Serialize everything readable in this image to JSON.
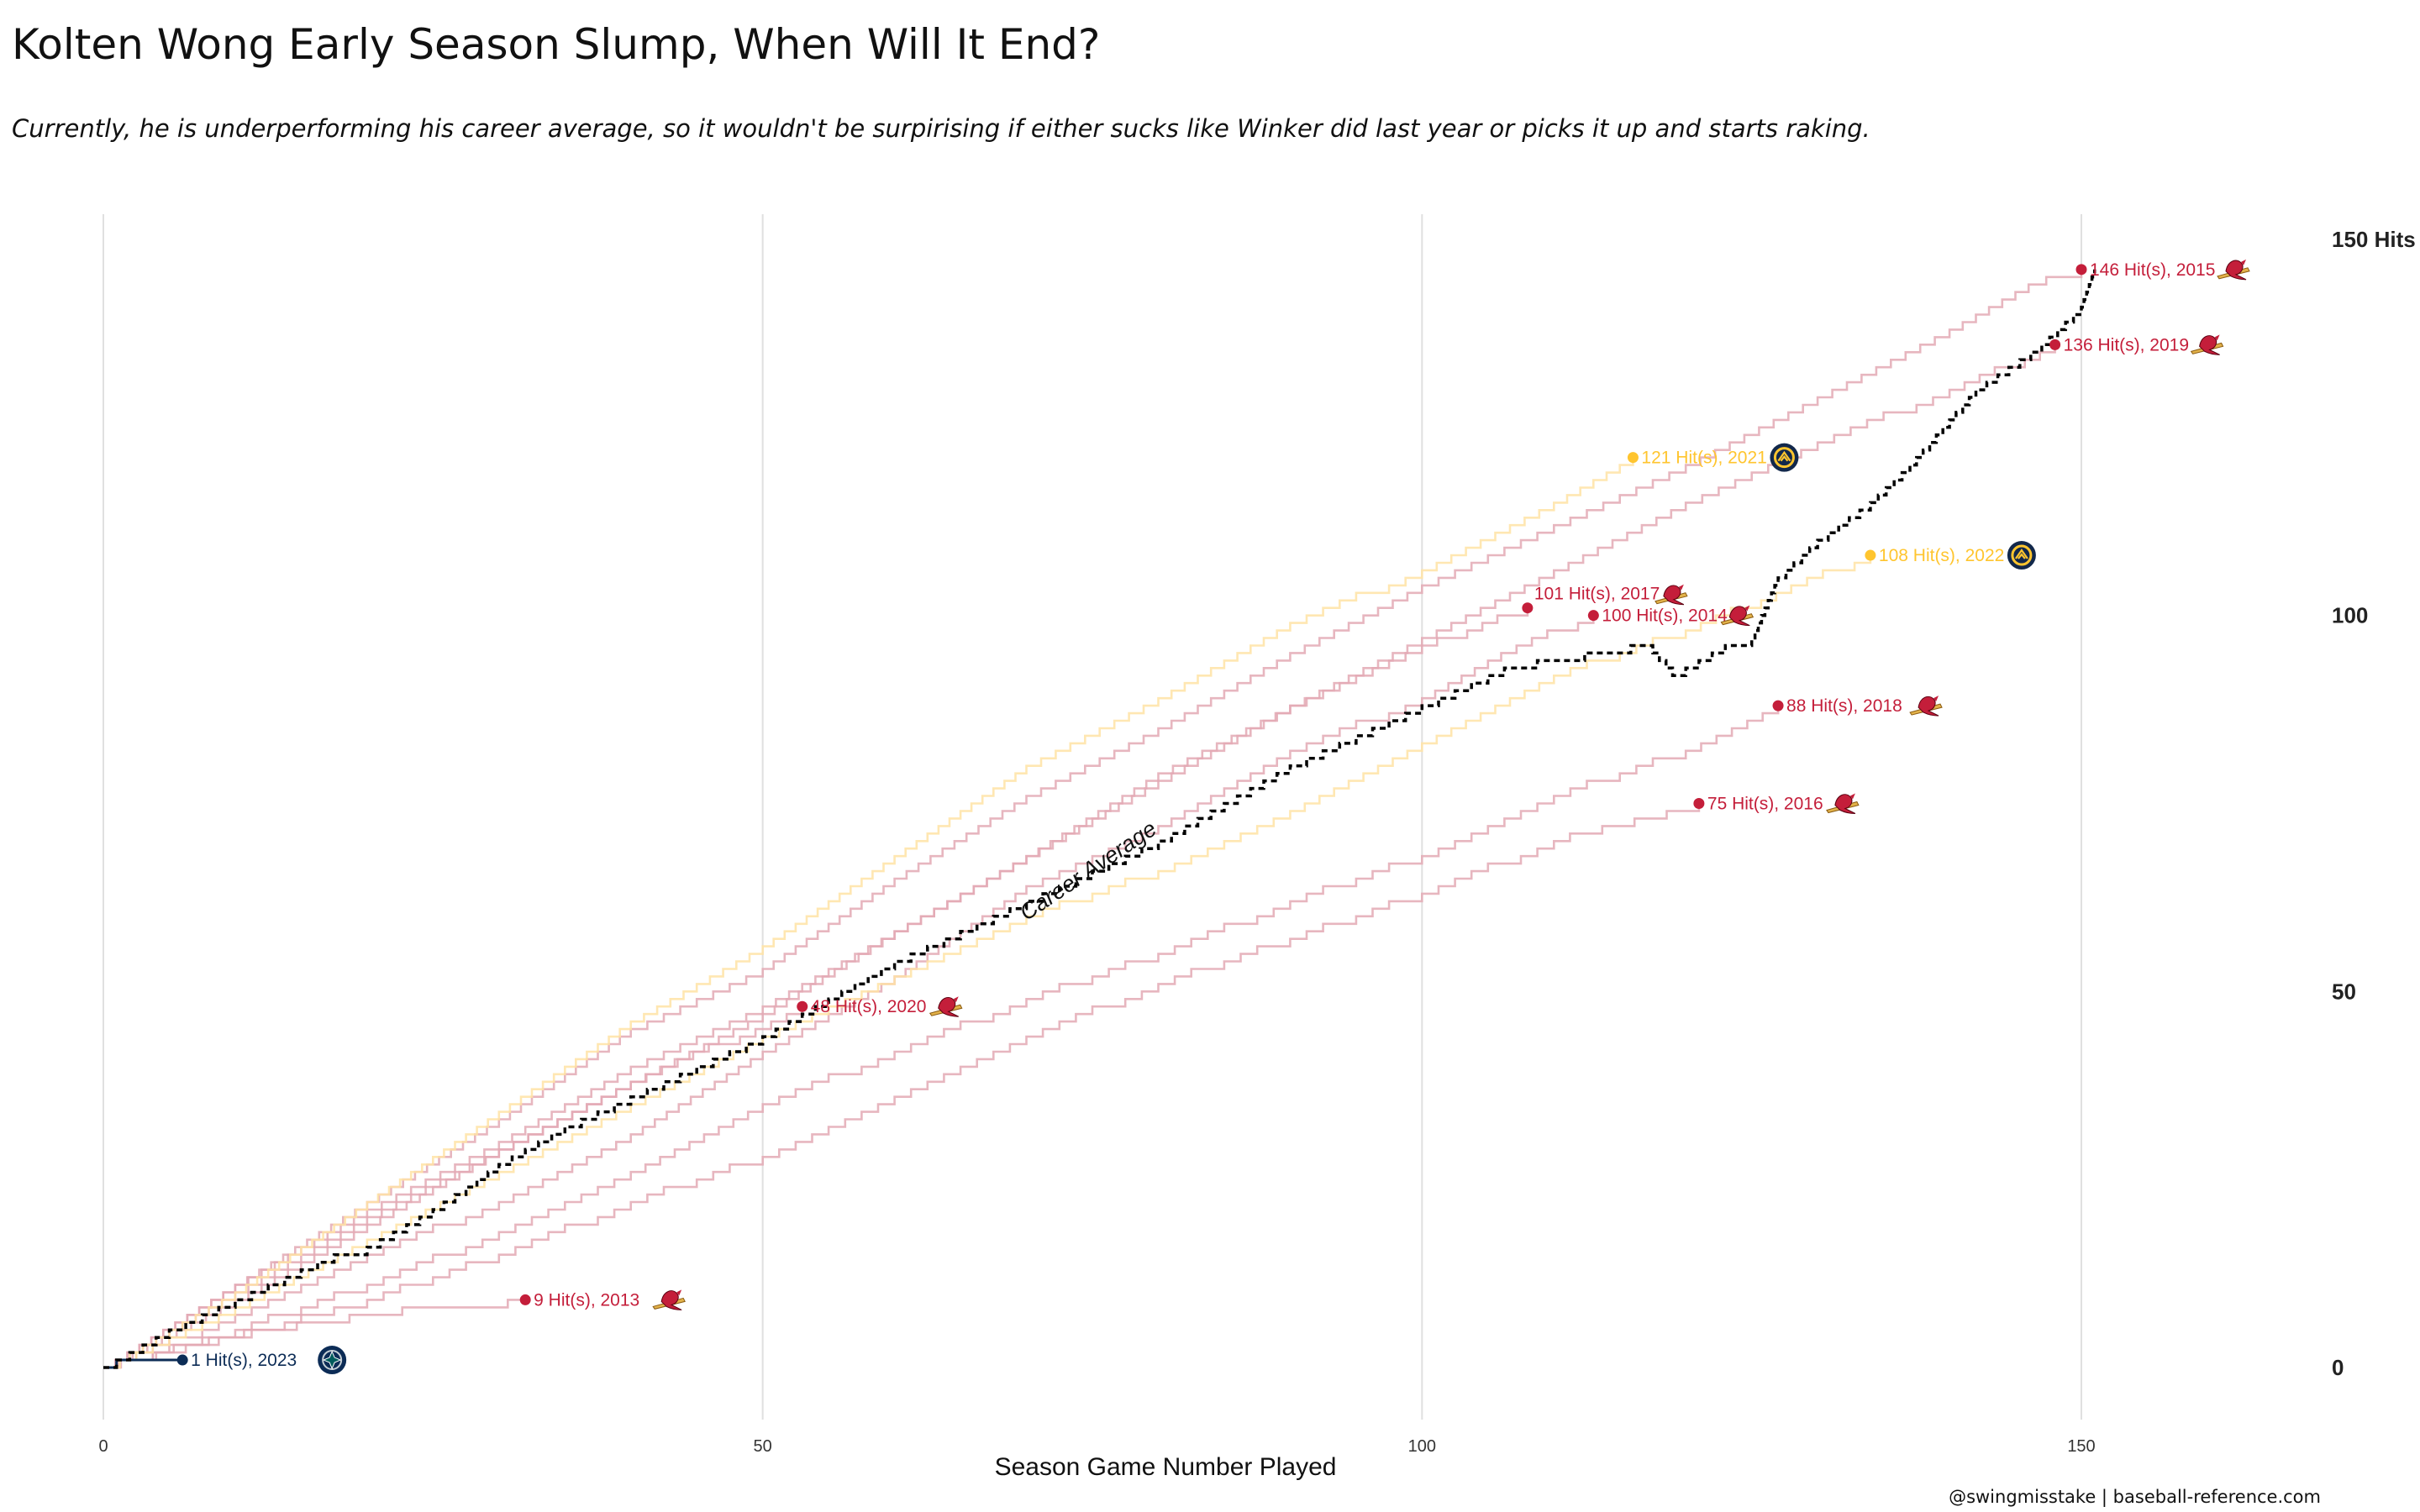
{
  "header": {
    "title": "Kolten Wong Early Season Slump, When Will It End?",
    "subtitle": "Currently, he is underperforming his career average, so it wouldn't be surpirising if either sucks like Winker did last year or picks it up and starts raking."
  },
  "caption": "@swingmisstake | baseball-reference.com",
  "colors": {
    "cardinals": "#C41E3A",
    "brewers": "#FFC52F",
    "mariners": "#0C2C56",
    "career_average": "#000000",
    "grid": "#e0e0e0"
  },
  "chart_data": {
    "type": "line",
    "title": "Kolten Wong Early Season Slump, When Will It End?",
    "xlabel": "Season Game Number Played",
    "ylabel": "",
    "xlim": [
      0,
      160
    ],
    "ylim": [
      -12,
      152
    ],
    "x_ticks": [
      0,
      50,
      100,
      150
    ],
    "x_tick_labels": [
      "0",
      "50",
      "100",
      "150"
    ],
    "y_ticks": [
      0,
      50,
      100,
      150
    ],
    "y_tick_labels": [
      "0",
      "50",
      "100",
      "150 Hits"
    ],
    "grid": "vertical",
    "annotation": "Career Average",
    "series": [
      {
        "name": "2013",
        "team": "cardinals",
        "icon": "cardinals-logo-icon",
        "label": "9 Hit(s), 2013",
        "games": 32,
        "hits": 9,
        "points": [
          [
            0,
            0
          ],
          [
            4,
            2
          ],
          [
            8,
            4
          ],
          [
            12,
            5
          ],
          [
            16,
            6
          ],
          [
            20,
            7
          ],
          [
            24,
            8
          ],
          [
            28,
            8
          ],
          [
            32,
            9
          ]
        ]
      },
      {
        "name": "2014",
        "team": "cardinals",
        "icon": "cardinals-logo-icon",
        "label": "100 Hit(s), 2014",
        "games": 113,
        "hits": 100,
        "points": [
          [
            0,
            0
          ],
          [
            10,
            7
          ],
          [
            20,
            15
          ],
          [
            30,
            22
          ],
          [
            40,
            31
          ],
          [
            50,
            42
          ],
          [
            60,
            52
          ],
          [
            70,
            64
          ],
          [
            80,
            72
          ],
          [
            90,
            82
          ],
          [
            100,
            89
          ],
          [
            106,
            95
          ],
          [
            113,
            100
          ]
        ]
      },
      {
        "name": "2015",
        "team": "cardinals",
        "icon": "cardinals-logo-icon",
        "label": "146 Hit(s), 2015",
        "games": 150,
        "hits": 146,
        "points": [
          [
            0,
            0
          ],
          [
            10,
            11
          ],
          [
            20,
            22
          ],
          [
            30,
            33
          ],
          [
            40,
            45
          ],
          [
            50,
            53
          ],
          [
            60,
            65
          ],
          [
            70,
            76
          ],
          [
            80,
            85
          ],
          [
            90,
            95
          ],
          [
            100,
            104
          ],
          [
            110,
            112
          ],
          [
            120,
            120
          ],
          [
            130,
            129
          ],
          [
            140,
            138
          ],
          [
            146,
            144
          ],
          [
            150,
            146
          ]
        ]
      },
      {
        "name": "2016",
        "team": "cardinals",
        "icon": "cardinals-logo-icon",
        "label": "75 Hit(s), 2016",
        "games": 121,
        "hits": 75,
        "points": [
          [
            0,
            0
          ],
          [
            10,
            4
          ],
          [
            20,
            9
          ],
          [
            30,
            15
          ],
          [
            40,
            22
          ],
          [
            50,
            28
          ],
          [
            60,
            36
          ],
          [
            70,
            44
          ],
          [
            80,
            51
          ],
          [
            90,
            57
          ],
          [
            100,
            63
          ],
          [
            110,
            70
          ],
          [
            121,
            75
          ]
        ]
      },
      {
        "name": "2017",
        "team": "cardinals",
        "icon": "cardinals-logo-icon",
        "label": "101 Hit(s), 2017",
        "games": 108,
        "hits": 101,
        "points": [
          [
            0,
            0
          ],
          [
            10,
            11
          ],
          [
            20,
            21
          ],
          [
            30,
            30
          ],
          [
            40,
            40
          ],
          [
            50,
            48
          ],
          [
            60,
            58
          ],
          [
            70,
            68
          ],
          [
            80,
            79
          ],
          [
            90,
            88
          ],
          [
            100,
            96
          ],
          [
            108,
            101
          ]
        ]
      },
      {
        "name": "2018",
        "team": "cardinals",
        "icon": "cardinals-logo-icon",
        "label": "88 Hit(s), 2018",
        "games": 127,
        "hits": 88,
        "points": [
          [
            0,
            0
          ],
          [
            10,
            5
          ],
          [
            20,
            11
          ],
          [
            30,
            18
          ],
          [
            40,
            26
          ],
          [
            50,
            35
          ],
          [
            60,
            42
          ],
          [
            70,
            49
          ],
          [
            80,
            55
          ],
          [
            90,
            62
          ],
          [
            100,
            68
          ],
          [
            110,
            76
          ],
          [
            120,
            82
          ],
          [
            127,
            88
          ]
        ]
      },
      {
        "name": "2019",
        "team": "cardinals",
        "icon": "cardinals-logo-icon",
        "label": "136 Hit(s), 2019",
        "games": 148,
        "hits": 136,
        "points": [
          [
            0,
            0
          ],
          [
            10,
            9
          ],
          [
            20,
            19
          ],
          [
            30,
            29
          ],
          [
            40,
            38
          ],
          [
            50,
            47
          ],
          [
            60,
            58
          ],
          [
            70,
            68
          ],
          [
            80,
            78
          ],
          [
            90,
            88
          ],
          [
            100,
            97
          ],
          [
            110,
            106
          ],
          [
            120,
            115
          ],
          [
            130,
            123
          ],
          [
            140,
            130
          ],
          [
            148,
            136
          ]
        ]
      },
      {
        "name": "2020",
        "team": "cardinals",
        "icon": "cardinals-logo-icon",
        "label": "48 Hit(s), 2020",
        "games": 53,
        "hits": 48,
        "points": [
          [
            0,
            0
          ],
          [
            10,
            10
          ],
          [
            20,
            20
          ],
          [
            30,
            29
          ],
          [
            40,
            38
          ],
          [
            53,
            48
          ]
        ]
      },
      {
        "name": "2021",
        "team": "brewers",
        "icon": "brewers-logo-icon",
        "label": "121 Hit(s), 2021",
        "games": 116,
        "hits": 121,
        "points": [
          [
            0,
            0
          ],
          [
            10,
            10
          ],
          [
            20,
            22
          ],
          [
            30,
            34
          ],
          [
            40,
            46
          ],
          [
            50,
            56
          ],
          [
            60,
            68
          ],
          [
            70,
            80
          ],
          [
            80,
            89
          ],
          [
            90,
            99
          ],
          [
            100,
            106
          ],
          [
            110,
            115
          ],
          [
            116,
            121
          ]
        ]
      },
      {
        "name": "2022",
        "team": "brewers",
        "icon": "brewers-logo-icon",
        "label": "108 Hit(s), 2022",
        "games": 134,
        "hits": 108,
        "points": [
          [
            0,
            0
          ],
          [
            10,
            8
          ],
          [
            20,
            17
          ],
          [
            30,
            26
          ],
          [
            40,
            35
          ],
          [
            50,
            44
          ],
          [
            60,
            52
          ],
          [
            70,
            60
          ],
          [
            80,
            66
          ],
          [
            90,
            74
          ],
          [
            100,
            83
          ],
          [
            110,
            92
          ],
          [
            120,
            98
          ],
          [
            128,
            104
          ],
          [
            134,
            108
          ]
        ]
      },
      {
        "name": "2023",
        "team": "mariners",
        "icon": "mariners-logo-icon",
        "label": "1 Hit(s), 2023",
        "games": 6,
        "hits": 1,
        "points": [
          [
            0,
            0
          ],
          [
            1,
            1
          ],
          [
            6,
            1
          ]
        ]
      },
      {
        "name": "Career Average",
        "team": "career_average",
        "points": [
          [
            0,
            0
          ],
          [
            5,
            5
          ],
          [
            10,
            9
          ],
          [
            15,
            13
          ],
          [
            20,
            16
          ],
          [
            25,
            21
          ],
          [
            30,
            27
          ],
          [
            35,
            32
          ],
          [
            40,
            36
          ],
          [
            45,
            40
          ],
          [
            50,
            44
          ],
          [
            55,
            49
          ],
          [
            60,
            54
          ],
          [
            65,
            58
          ],
          [
            70,
            62
          ],
          [
            75,
            66
          ],
          [
            80,
            70
          ],
          [
            85,
            75
          ],
          [
            90,
            80
          ],
          [
            95,
            84
          ],
          [
            100,
            88
          ],
          [
            105,
            92
          ],
          [
            110,
            94
          ],
          [
            117,
            96
          ],
          [
            119,
            92
          ],
          [
            122,
            95
          ],
          [
            125,
            97
          ],
          [
            127,
            105
          ],
          [
            130,
            110
          ],
          [
            134,
            115
          ],
          [
            137,
            120
          ],
          [
            142,
            130
          ],
          [
            147,
            136
          ],
          [
            150,
            141
          ],
          [
            151,
            146
          ]
        ]
      }
    ]
  }
}
